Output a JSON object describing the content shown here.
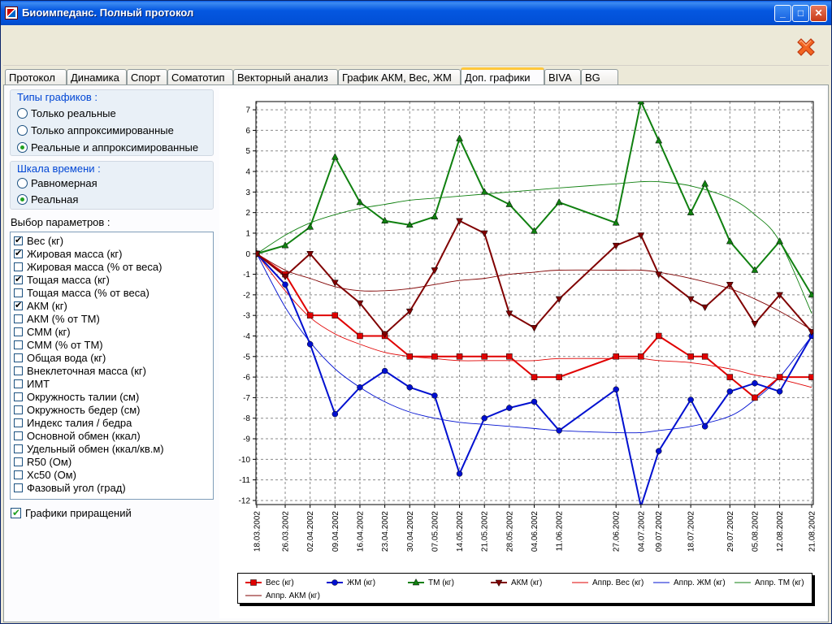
{
  "window": {
    "title": "Биоимпеданс.  Полный протокол"
  },
  "titlebar_buttons": {
    "minimize": "_",
    "maximize": "□",
    "close": "✕"
  },
  "tabs": [
    {
      "label": "Протокол",
      "active": false
    },
    {
      "label": "Динамика",
      "active": false
    },
    {
      "label": "Спорт",
      "active": false
    },
    {
      "label": "Соматотип",
      "active": false
    },
    {
      "label": "Векторный анализ",
      "active": false
    },
    {
      "label": "График АКМ, Вес, ЖМ",
      "active": false
    },
    {
      "label": "Доп. графики",
      "active": true
    },
    {
      "label": "BIVA",
      "active": false
    },
    {
      "label": "BG",
      "active": false
    }
  ],
  "chart_types": {
    "title": "Типы графиков :",
    "options": [
      {
        "label": "Только реальные",
        "selected": false
      },
      {
        "label": "Только аппроксимированные",
        "selected": false
      },
      {
        "label": "Реальные и аппроксимированные",
        "selected": true
      }
    ]
  },
  "time_scale": {
    "title": "Шкала времени :",
    "options": [
      {
        "label": "Равномерная",
        "selected": false
      },
      {
        "label": "Реальная",
        "selected": true
      }
    ]
  },
  "params": {
    "label": "Выбор параметров :",
    "items": [
      {
        "label": "Вес (кг)",
        "checked": true
      },
      {
        "label": "Жировая масса (кг)",
        "checked": true
      },
      {
        "label": "Жировая масса (% от веса)",
        "checked": false
      },
      {
        "label": "Тощая масса (кг)",
        "checked": true
      },
      {
        "label": "Тощая масса (% от веса)",
        "checked": false
      },
      {
        "label": "АКМ (кг)",
        "checked": true
      },
      {
        "label": "АКМ (% от ТМ)",
        "checked": false
      },
      {
        "label": "СММ (кг)",
        "checked": false
      },
      {
        "label": "СММ (% от ТМ)",
        "checked": false
      },
      {
        "label": "Общая вода (кг)",
        "checked": false
      },
      {
        "label": "Внеклеточная масса (кг)",
        "checked": false
      },
      {
        "label": "ИМТ",
        "checked": false
      },
      {
        "label": "Окружность талии (см)",
        "checked": false
      },
      {
        "label": "Окружность бедер (см)",
        "checked": false
      },
      {
        "label": "Индекс талия / бедра",
        "checked": false
      },
      {
        "label": "Основной обмен (ккал)",
        "checked": false
      },
      {
        "label": "Удельный обмен (ккал/кв.м)",
        "checked": false
      },
      {
        "label": "R50 (Ом)",
        "checked": false
      },
      {
        "label": "Xc50 (Ом)",
        "checked": false
      },
      {
        "label": "Фазовый угол (град)",
        "checked": false
      }
    ]
  },
  "increment_charts": {
    "label": "Графики приращений",
    "checked": true
  },
  "chart_data": {
    "type": "line",
    "title": "",
    "xlabel": "",
    "ylabel": "",
    "ylim": [
      -12.2,
      7.4
    ],
    "yticks": [
      7,
      6,
      5,
      4,
      3,
      2,
      1,
      0,
      -1,
      -2,
      -3,
      -4,
      -5,
      -6,
      -7,
      -8,
      -9,
      -10,
      -11,
      -12
    ],
    "grid": true,
    "legend_position": "bottom",
    "x": [
      "18.03.2002",
      "26.03.2002",
      "02.04.2002",
      "09.04.2002",
      "16.04.2002",
      "23.04.2002",
      "30.04.2002",
      "07.05.2002",
      "14.05.2002",
      "21.05.2002",
      "28.05.2002",
      "04.06.2002",
      "11.06.2002",
      "27.06.2002",
      "04.07.2002",
      "09.07.2002",
      "18.07.2002",
      "29.07.2002",
      "05.08.2002",
      "12.08.2002",
      "21.08.2002"
    ],
    "x_days": [
      0,
      8,
      15,
      22,
      29,
      36,
      43,
      50,
      57,
      64,
      71,
      78,
      85,
      101,
      108,
      113,
      122,
      133,
      140,
      147,
      156
    ],
    "series": [
      {
        "name": "Вес (кг)",
        "kind": "real",
        "color": "#e00000",
        "marker": "square",
        "points": [
          [
            0,
            0
          ],
          [
            8,
            -1
          ],
          [
            15,
            -3
          ],
          [
            22,
            -3
          ],
          [
            29,
            -4
          ],
          [
            36,
            -4
          ],
          [
            43,
            -5
          ],
          [
            50,
            -5
          ],
          [
            57,
            -5
          ],
          [
            64,
            -5
          ],
          [
            71,
            -5
          ],
          [
            78,
            -6
          ],
          [
            85,
            -6
          ],
          [
            101,
            -5
          ],
          [
            108,
            -5
          ],
          [
            113,
            -4
          ],
          [
            122,
            -5
          ],
          [
            126,
            -5
          ],
          [
            133,
            -6
          ],
          [
            140,
            -7
          ],
          [
            147,
            -6
          ],
          [
            156,
            -6
          ]
        ]
      },
      {
        "name": "ЖМ (кг)",
        "kind": "real",
        "color": "#0010d0",
        "marker": "diamond",
        "points": [
          [
            0,
            0
          ],
          [
            8,
            -1.5
          ],
          [
            15,
            -4.4
          ],
          [
            22,
            -7.8
          ],
          [
            29,
            -6.5
          ],
          [
            36,
            -5.7
          ],
          [
            43,
            -6.5
          ],
          [
            50,
            -6.9
          ],
          [
            57,
            -10.7
          ],
          [
            64,
            -8
          ],
          [
            71,
            -7.5
          ],
          [
            78,
            -7.2
          ],
          [
            85,
            -8.6
          ],
          [
            101,
            -6.6
          ],
          [
            108,
            -12.3
          ],
          [
            113,
            -9.6
          ],
          [
            122,
            -7.1
          ],
          [
            126,
            -8.4
          ],
          [
            133,
            -6.7
          ],
          [
            140,
            -6.3
          ],
          [
            147,
            -6.7
          ],
          [
            156,
            -4
          ]
        ]
      },
      {
        "name": "ТМ (кг)",
        "kind": "real",
        "color": "#108010",
        "marker": "triangle-up",
        "points": [
          [
            0,
            0
          ],
          [
            8,
            0.4
          ],
          [
            15,
            1.3
          ],
          [
            22,
            4.7
          ],
          [
            29,
            2.5
          ],
          [
            36,
            1.6
          ],
          [
            43,
            1.4
          ],
          [
            50,
            1.8
          ],
          [
            57,
            5.6
          ],
          [
            64,
            3
          ],
          [
            71,
            2.4
          ],
          [
            78,
            1.1
          ],
          [
            85,
            2.5
          ],
          [
            101,
            1.5
          ],
          [
            108,
            7.4
          ],
          [
            113,
            5.5
          ],
          [
            122,
            2
          ],
          [
            126,
            3.4
          ],
          [
            133,
            0.6
          ],
          [
            140,
            -0.8
          ],
          [
            147,
            0.6
          ],
          [
            156,
            -2
          ]
        ]
      },
      {
        "name": "АКМ (кг)",
        "kind": "real",
        "color": "#800000",
        "marker": "triangle-down",
        "points": [
          [
            0,
            0
          ],
          [
            8,
            -1.1
          ],
          [
            15,
            0
          ],
          [
            22,
            -1.4
          ],
          [
            29,
            -2.4
          ],
          [
            36,
            -3.9
          ],
          [
            43,
            -2.8
          ],
          [
            50,
            -0.8
          ],
          [
            57,
            1.6
          ],
          [
            64,
            1
          ],
          [
            71,
            -2.9
          ],
          [
            78,
            -3.6
          ],
          [
            85,
            -2.2
          ],
          [
            101,
            0.4
          ],
          [
            108,
            0.9
          ],
          [
            113,
            -1
          ],
          [
            122,
            -2.2
          ],
          [
            126,
            -2.6
          ],
          [
            133,
            -1.5
          ],
          [
            140,
            -3.4
          ],
          [
            147,
            -2
          ],
          [
            156,
            -3.8
          ]
        ]
      },
      {
        "name": "Аппр. Вес (кг)",
        "kind": "approx",
        "color": "#e00000",
        "points": [
          [
            0,
            0
          ],
          [
            8,
            -1.8
          ],
          [
            15,
            -3.1
          ],
          [
            22,
            -3.9
          ],
          [
            29,
            -4.4
          ],
          [
            36,
            -4.8
          ],
          [
            43,
            -5
          ],
          [
            50,
            -5.1
          ],
          [
            57,
            -5.2
          ],
          [
            64,
            -5.2
          ],
          [
            71,
            -5.2
          ],
          [
            78,
            -5.2
          ],
          [
            85,
            -5.1
          ],
          [
            101,
            -5.1
          ],
          [
            108,
            -5.1
          ],
          [
            113,
            -5.2
          ],
          [
            122,
            -5.3
          ],
          [
            133,
            -5.6
          ],
          [
            140,
            -5.9
          ],
          [
            147,
            -6.1
          ],
          [
            156,
            -6.5
          ]
        ]
      },
      {
        "name": "Аппр. ЖМ (кг)",
        "kind": "approx",
        "color": "#0010d0",
        "points": [
          [
            0,
            0
          ],
          [
            8,
            -2.6
          ],
          [
            15,
            -4.3
          ],
          [
            22,
            -5.6
          ],
          [
            29,
            -6.5
          ],
          [
            36,
            -7.2
          ],
          [
            43,
            -7.7
          ],
          [
            50,
            -8
          ],
          [
            57,
            -8.2
          ],
          [
            64,
            -8.3
          ],
          [
            71,
            -8.4
          ],
          [
            78,
            -8.5
          ],
          [
            85,
            -8.6
          ],
          [
            101,
            -8.7
          ],
          [
            108,
            -8.7
          ],
          [
            113,
            -8.6
          ],
          [
            122,
            -8.4
          ],
          [
            133,
            -7.9
          ],
          [
            140,
            -7.1
          ],
          [
            147,
            -6
          ],
          [
            156,
            -4
          ]
        ]
      },
      {
        "name": "Аппр. ТМ (кг)",
        "kind": "approx",
        "color": "#108010",
        "points": [
          [
            0,
            0
          ],
          [
            8,
            0.9
          ],
          [
            15,
            1.5
          ],
          [
            22,
            1.9
          ],
          [
            29,
            2.2
          ],
          [
            36,
            2.4
          ],
          [
            43,
            2.6
          ],
          [
            50,
            2.7
          ],
          [
            57,
            2.8
          ],
          [
            64,
            2.9
          ],
          [
            71,
            3
          ],
          [
            78,
            3.1
          ],
          [
            85,
            3.2
          ],
          [
            101,
            3.4
          ],
          [
            108,
            3.5
          ],
          [
            113,
            3.5
          ],
          [
            122,
            3.3
          ],
          [
            133,
            2.7
          ],
          [
            140,
            1.9
          ],
          [
            147,
            0.6
          ],
          [
            156,
            -2.9
          ]
        ]
      },
      {
        "name": "Аппр. АКМ (кг)",
        "kind": "approx",
        "color": "#800000",
        "points": [
          [
            0,
            0
          ],
          [
            8,
            -0.8
          ],
          [
            15,
            -1.2
          ],
          [
            22,
            -1.6
          ],
          [
            29,
            -1.8
          ],
          [
            36,
            -1.8
          ],
          [
            43,
            -1.7
          ],
          [
            50,
            -1.5
          ],
          [
            57,
            -1.3
          ],
          [
            64,
            -1.2
          ],
          [
            71,
            -1
          ],
          [
            78,
            -0.9
          ],
          [
            85,
            -0.8
          ],
          [
            101,
            -0.8
          ],
          [
            108,
            -0.8
          ],
          [
            113,
            -0.9
          ],
          [
            122,
            -1.2
          ],
          [
            133,
            -1.7
          ],
          [
            140,
            -2.2
          ],
          [
            147,
            -2.8
          ],
          [
            156,
            -3.7
          ]
        ]
      }
    ]
  }
}
